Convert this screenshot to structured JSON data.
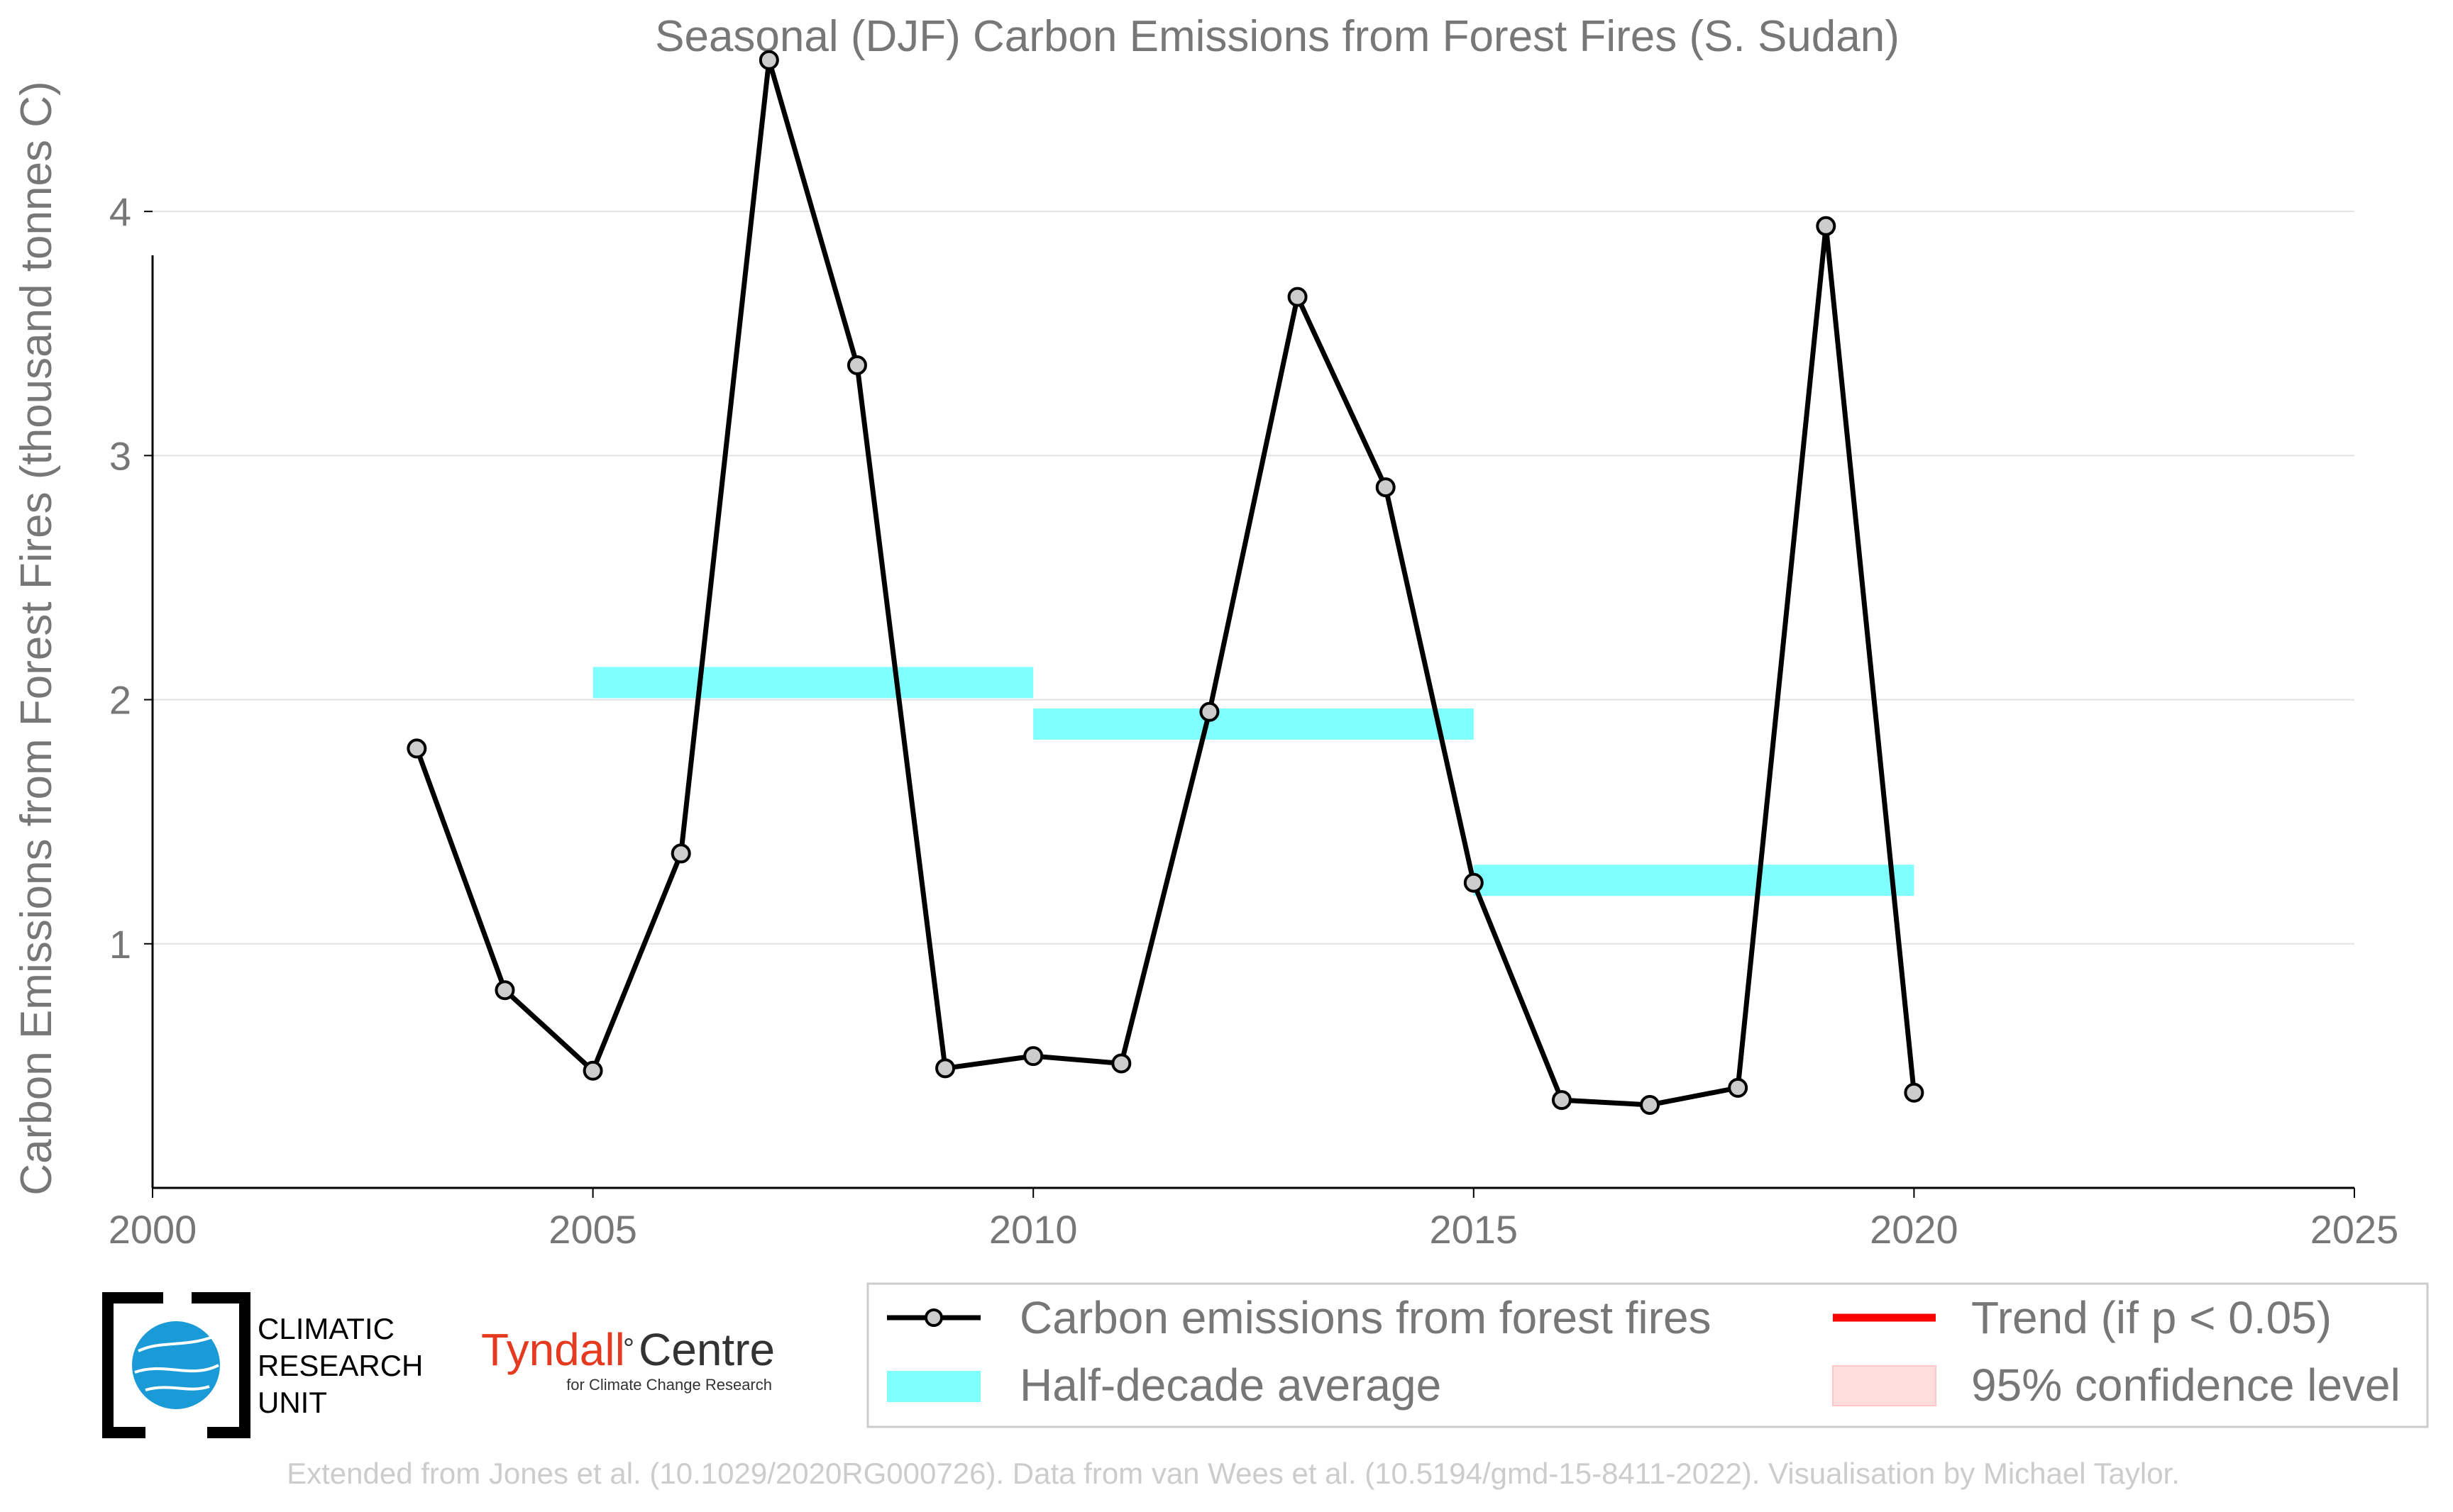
{
  "chart_data": {
    "type": "line",
    "title": "Seasonal (DJF) Carbon Emissions from Forest Fires (S. Sudan)",
    "xlabel": "",
    "ylabel": "Carbon Emissions from Forest Fires (thousand tonnes C)",
    "xlim": [
      2000,
      2025
    ],
    "ylim": [
      0,
      4.75
    ],
    "xticks": [
      "2000",
      "2005",
      "2010",
      "2015",
      "2020",
      "2025"
    ],
    "yticks": [
      "1",
      "2",
      "3",
      "4"
    ],
    "grid": "horizontal",
    "series": [
      {
        "name": "Carbon emissions from forest fires",
        "color": "#000000",
        "x": [
          2003,
          2004,
          2005,
          2006,
          2007,
          2008,
          2009,
          2010,
          2011,
          2012,
          2013,
          2014,
          2015,
          2016,
          2017,
          2018,
          2019,
          2020
        ],
        "y": [
          1.8,
          0.81,
          0.48,
          1.37,
          4.62,
          3.37,
          0.49,
          0.54,
          0.51,
          1.95,
          3.65,
          2.87,
          1.25,
          0.36,
          0.34,
          0.41,
          3.94,
          0.39
        ]
      }
    ],
    "half_decade_average": {
      "name": "Half-decade average",
      "color": "#80ffff",
      "segments": [
        {
          "x0": 2005,
          "x1": 2010,
          "y": 2.07
        },
        {
          "x0": 2010,
          "x1": 2015,
          "y": 1.9
        },
        {
          "x0": 2015,
          "x1": 2020,
          "y": 1.26
        }
      ]
    },
    "legend": {
      "placement": "bottom-right",
      "items": [
        {
          "label": "Carbon emissions from forest fires",
          "color": "#000000",
          "kind": "line-marker"
        },
        {
          "label": "Trend (if p < 0.05)",
          "color": "#ff0000",
          "kind": "line"
        },
        {
          "label": "Half-decade average",
          "color": "#80ffff",
          "kind": "band"
        },
        {
          "label": "95% confidence level",
          "color": "#ffdddd",
          "kind": "patch"
        }
      ]
    }
  },
  "logos": {
    "cru": {
      "line1": "CLIMATIC",
      "line2": "RESEARCH",
      "line3": "UNIT"
    },
    "tyndall": {
      "name": "Tyndall",
      "degree": "°",
      "centre": "Centre",
      "sub": "for Climate Change Research"
    }
  },
  "footer": "Extended from Jones et al. (10.1029/2020RG000726). Data from van Wees et al. (10.5194/gmd-15-8411-2022). Visualisation by Michael Taylor."
}
